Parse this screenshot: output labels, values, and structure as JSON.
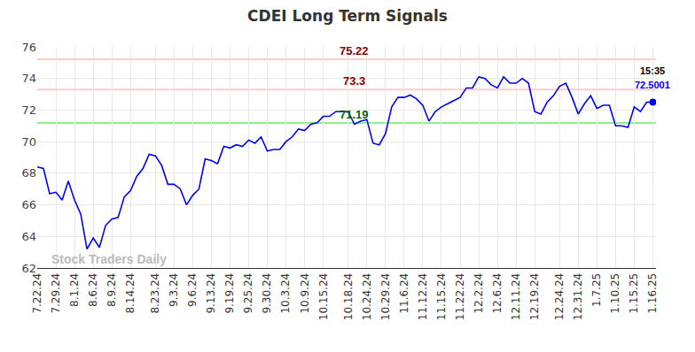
{
  "chart_data": {
    "type": "line",
    "title": "CDEI Long Term Signals",
    "color": "#0000ff",
    "categories": [
      "7.22.24",
      null,
      null,
      "7.29.24",
      null,
      null,
      "8.1.24",
      null,
      null,
      "8.6.24",
      null,
      null,
      "8.9.24",
      null,
      null,
      "8.14.24",
      null,
      null,
      null,
      "8.23.24",
      null,
      null,
      "9.3.24",
      null,
      null,
      "9.6.24",
      null,
      null,
      "9.13.24",
      null,
      null,
      "9.19.24",
      null,
      null,
      "9.25.24",
      null,
      null,
      "9.30.24",
      null,
      null,
      "10.3.24",
      null,
      null,
      "10.9.24",
      null,
      null,
      "10.15.24",
      null,
      null,
      null,
      "10.18.24",
      null,
      null,
      "10.24.24",
      null,
      null,
      "10.29.24",
      null,
      null,
      "11.6.24",
      null,
      null,
      "11.12.24",
      null,
      null,
      "11.15.24",
      null,
      null,
      "11.22.24",
      null,
      null,
      "12.2.24",
      null,
      null,
      "12.6.24",
      null,
      null,
      "12.11.24",
      null,
      null,
      "12.19.24",
      null,
      null,
      null,
      "12.24.24",
      null,
      null,
      "12.31.24",
      null,
      null,
      "1.7.25",
      null,
      null,
      "1.10.25",
      null,
      null,
      "1.15.25",
      null,
      null,
      "1.16.25"
    ],
    "values": [
      68.4,
      68.3,
      66.7,
      66.8,
      66.3,
      67.5,
      66.3,
      65.4,
      63.2,
      63.9,
      63.3,
      64.7,
      65.1,
      65.2,
      66.5,
      66.9,
      67.8,
      68.3,
      69.2,
      69.1,
      68.5,
      67.3,
      67.3,
      67.0,
      66.0,
      66.6,
      67.0,
      68.9,
      68.8,
      68.6,
      69.7,
      69.6,
      69.8,
      69.7,
      70.1,
      69.9,
      70.3,
      69.4,
      69.5,
      69.5,
      70.0,
      70.3,
      70.8,
      70.7,
      71.1,
      71.2,
      71.6,
      71.6,
      71.9,
      71.9,
      71.9,
      71.1,
      71.3,
      71.4,
      69.9,
      69.8,
      70.5,
      72.2,
      72.8,
      72.8,
      72.95,
      72.7,
      72.3,
      71.3,
      71.9,
      72.2,
      72.4,
      72.6,
      72.8,
      73.4,
      73.4,
      74.1,
      74.0,
      73.6,
      73.4,
      74.1,
      73.7,
      73.7,
      74.0,
      73.7,
      71.9,
      71.75,
      72.5,
      72.9,
      73.5,
      73.7,
      72.8,
      71.75,
      72.4,
      72.9,
      72.1,
      72.3,
      72.3,
      71.0,
      71.0,
      70.9,
      72.2,
      71.9,
      72.5,
      72.5001
    ],
    "ylim": [
      62,
      76
    ],
    "yticks": [
      62,
      64,
      66,
      68,
      70,
      72,
      74,
      76
    ],
    "grid": true,
    "reference_lines": [
      {
        "value": 75.22,
        "color": "#ffcccc",
        "label_color": "#8b0000"
      },
      {
        "value": 73.3,
        "color": "#ffcccc",
        "label_color": "#8b0000"
      },
      {
        "value": 71.19,
        "color": "#90ee90",
        "label_color": "#006400"
      }
    ],
    "last_time": "15:35",
    "watermark": "Stock Traders Daily"
  }
}
